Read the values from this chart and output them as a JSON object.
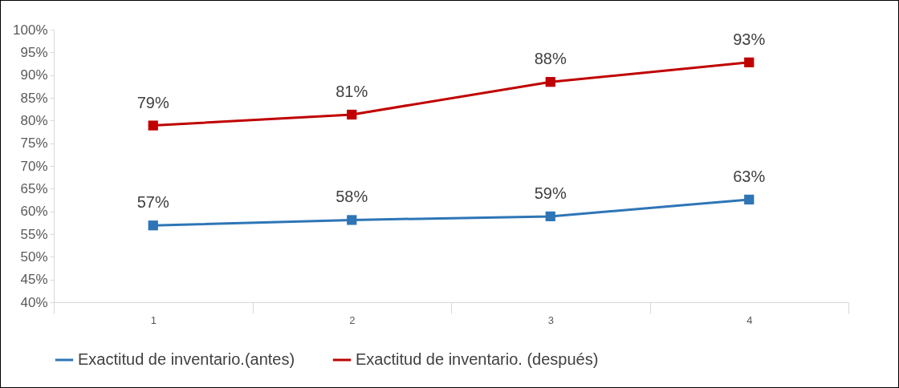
{
  "chart_data": {
    "type": "line",
    "categories": [
      "1",
      "2",
      "3",
      "4"
    ],
    "series": [
      {
        "name": "Exactitud de inventario.(antes)",
        "color": "#2e75b6",
        "values": [
          56.9,
          58.1,
          58.9,
          62.6
        ],
        "value_labels": [
          "57%",
          "58%",
          "59%",
          "63%"
        ]
      },
      {
        "name": "Exactitud de inventario. (después)",
        "color": "#c00000",
        "values": [
          78.9,
          81.3,
          88.5,
          92.8
        ],
        "value_labels": [
          "79%",
          "81%",
          "88%",
          "93%"
        ]
      }
    ],
    "ylim": [
      40,
      100
    ],
    "yticks": [
      {
        "value": 40,
        "label": "40%"
      },
      {
        "value": 45,
        "label": "45%"
      },
      {
        "value": 50,
        "label": "50%"
      },
      {
        "value": 55,
        "label": "55%"
      },
      {
        "value": 60,
        "label": "60%"
      },
      {
        "value": 65,
        "label": "65%"
      },
      {
        "value": 70,
        "label": "70%"
      },
      {
        "value": 75,
        "label": "75%"
      },
      {
        "value": 80,
        "label": "80%"
      },
      {
        "value": 85,
        "label": "85%"
      },
      {
        "value": 90,
        "label": "90%"
      },
      {
        "value": 95,
        "label": "95%"
      },
      {
        "value": 100,
        "label": "100%"
      }
    ],
    "grid": false,
    "legend": "bottom",
    "marker": "square",
    "line_style": "solid"
  }
}
